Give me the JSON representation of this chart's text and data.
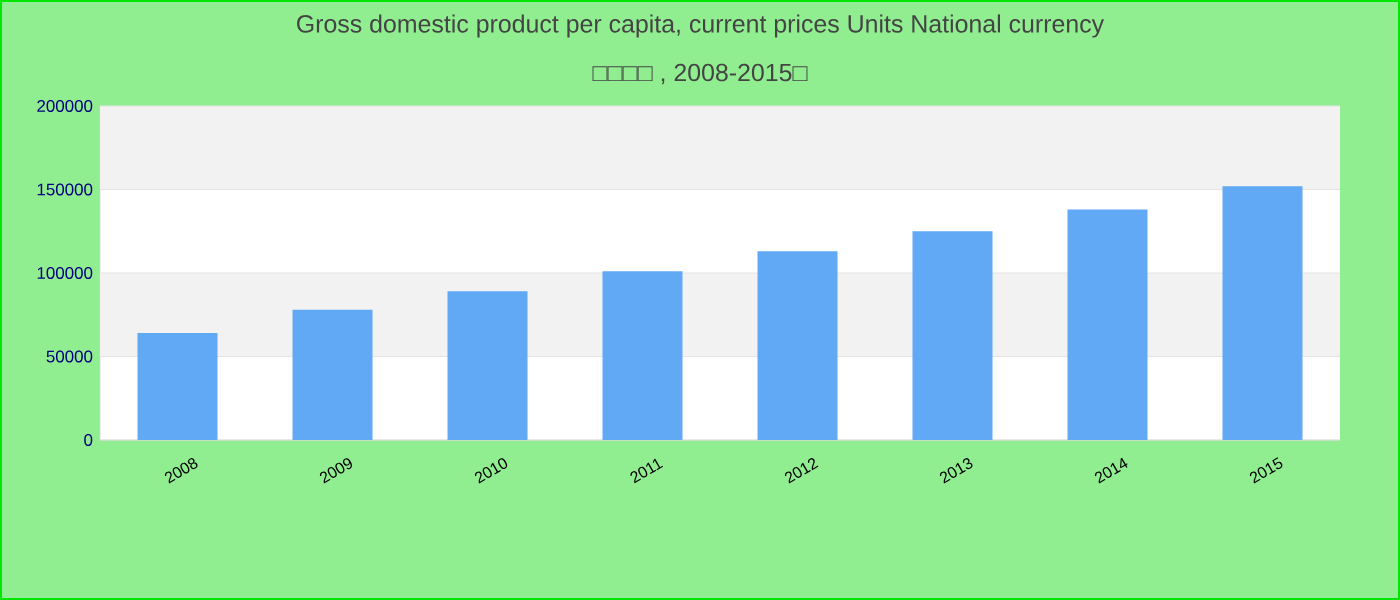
{
  "chart_data": {
    "type": "bar",
    "title": "Gross domestic product per capita, current prices Units National currency",
    "subtitle": "□□□□ , 2008-2015□",
    "categories": [
      "2008",
      "2009",
      "2010",
      "2011",
      "2012",
      "2013",
      "2014",
      "2015"
    ],
    "values": [
      64000,
      78000,
      89000,
      101000,
      113000,
      125000,
      138000,
      152000
    ],
    "color": "#61a8f5",
    "ylim": [
      0,
      200000
    ],
    "yticks": [
      0,
      50000,
      100000,
      150000,
      200000
    ],
    "grid": "y"
  }
}
